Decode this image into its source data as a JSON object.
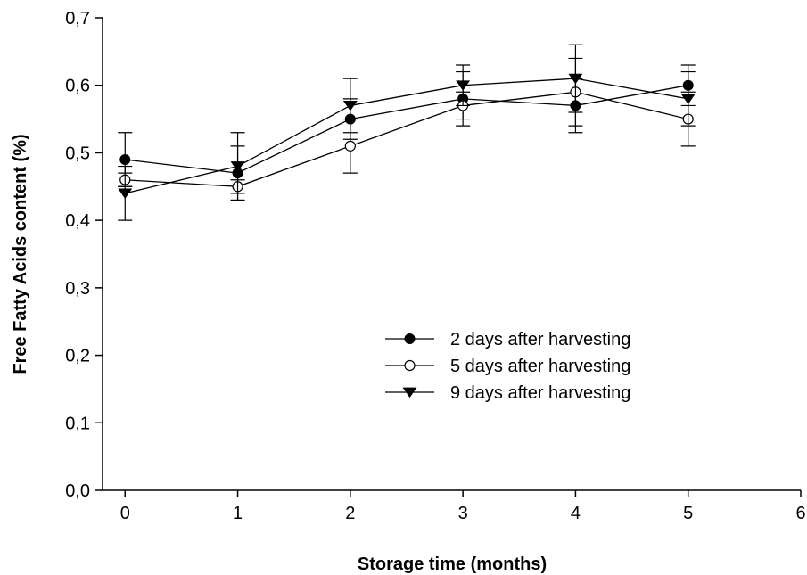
{
  "chart_data": {
    "type": "line",
    "title": "",
    "xlabel": "Storage time (months)",
    "ylabel": "Free Fatty Acids content (%)",
    "xlim": [
      -0.2,
      6
    ],
    "ylim": [
      0,
      0.7
    ],
    "xticks": [
      "0",
      "1",
      "2",
      "3",
      "4",
      "5",
      "6"
    ],
    "yticks": [
      "0,0",
      "0,1",
      "0,2",
      "0,3",
      "0,4",
      "0,5",
      "0,6",
      "0,7"
    ],
    "grid": false,
    "legend_position": "center-right",
    "series": [
      {
        "name": "2 days after harvesting",
        "marker": "filled-circle",
        "color": "#000000",
        "x": [
          0,
          1,
          2,
          3,
          4,
          5
        ],
        "y": [
          0.49,
          0.47,
          0.55,
          0.58,
          0.57,
          0.6
        ],
        "error": [
          0.04,
          0.04,
          0.03,
          0.04,
          0.04,
          0.03
        ]
      },
      {
        "name": "5 days after harvesting",
        "marker": "open-circle",
        "color": "#000000",
        "x": [
          0,
          1,
          2,
          3,
          4,
          5
        ],
        "y": [
          0.46,
          0.45,
          0.51,
          0.57,
          0.59,
          0.55
        ],
        "error": [
          0.01,
          0.01,
          0.04,
          0.02,
          0.05,
          0.04
        ]
      },
      {
        "name": "9 days after harvesting",
        "marker": "filled-triangle-down",
        "color": "#000000",
        "x": [
          0,
          1,
          2,
          3,
          4,
          5
        ],
        "y": [
          0.44,
          0.48,
          0.57,
          0.6,
          0.61,
          0.58
        ],
        "error": [
          0.04,
          0.05,
          0.04,
          0.03,
          0.05,
          0.04
        ]
      }
    ]
  }
}
